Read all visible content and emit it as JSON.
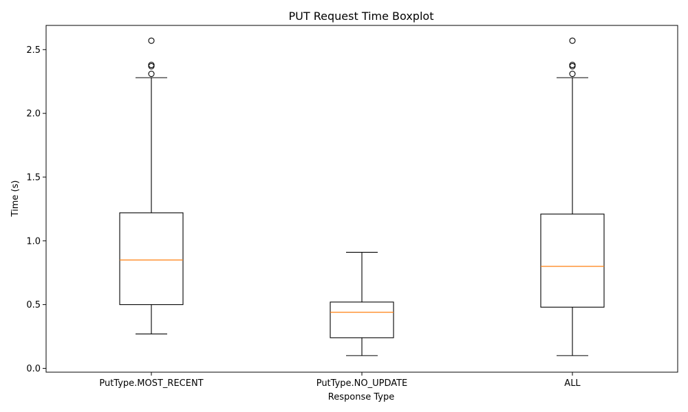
{
  "chart_data": {
    "type": "boxplot",
    "title": "PUT Request Time Boxplot",
    "xlabel": "Response Type",
    "ylabel": "Time (s)",
    "ylim": [
      -0.03,
      2.69
    ],
    "yticks": [
      0.0,
      0.5,
      1.0,
      1.5,
      2.0,
      2.5
    ],
    "ytick_labels": [
      "0.0",
      "0.5",
      "1.0",
      "1.5",
      "2.0",
      "2.5"
    ],
    "grid": false,
    "colors": {
      "box": "#000000",
      "median": "#ff7f0e",
      "whisker": "#000000",
      "flier": "#000000"
    },
    "categories": [
      "PutType.MOST_RECENT",
      "PutType.NO_UPDATE",
      "ALL"
    ],
    "boxes": [
      {
        "label": "PutType.MOST_RECENT",
        "whisker_low": 0.27,
        "q1": 0.5,
        "median": 0.85,
        "q3": 1.22,
        "whisker_high": 2.28,
        "outliers": [
          2.31,
          2.37,
          2.38,
          2.57
        ]
      },
      {
        "label": "PutType.NO_UPDATE",
        "whisker_low": 0.1,
        "q1": 0.24,
        "median": 0.44,
        "q3": 0.52,
        "whisker_high": 0.91,
        "outliers": []
      },
      {
        "label": "ALL",
        "whisker_low": 0.1,
        "q1": 0.48,
        "median": 0.8,
        "q3": 1.21,
        "whisker_high": 2.28,
        "outliers": [
          2.31,
          2.37,
          2.38,
          2.57
        ]
      }
    ]
  }
}
